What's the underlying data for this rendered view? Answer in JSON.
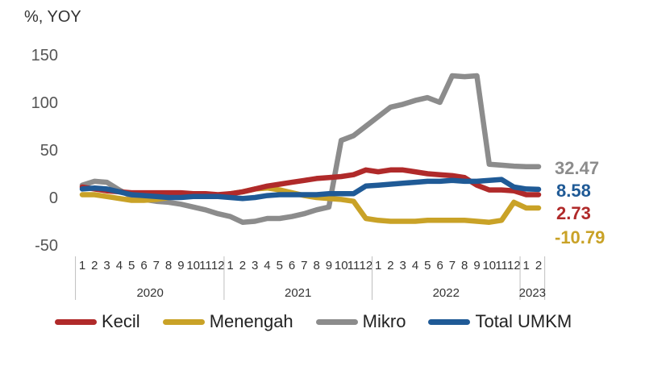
{
  "chart_data": {
    "type": "line",
    "ylabel": "%, YOY",
    "ylim": [
      -50,
      150
    ],
    "yticks": [
      150,
      100,
      50,
      0,
      -50
    ],
    "xtick_labels": [
      "1",
      "2",
      "3",
      "4",
      "5",
      "6",
      "7",
      "8",
      "9",
      "10",
      "11",
      "12",
      "1",
      "2",
      "3",
      "4",
      "5",
      "6",
      "7",
      "8",
      "9",
      "10",
      "11",
      "12",
      "1",
      "2",
      "3",
      "4",
      "5",
      "6",
      "7",
      "8",
      "9",
      "10",
      "11",
      "12",
      "1",
      "2"
    ],
    "years": [
      {
        "label": "2020",
        "start": 0,
        "end": 11
      },
      {
        "label": "2021",
        "start": 12,
        "end": 23
      },
      {
        "label": "2022",
        "start": 24,
        "end": 35
      },
      {
        "label": "2023",
        "start": 36,
        "end": 37
      }
    ],
    "series": [
      {
        "name": "Kecil",
        "color": "#b02a2a",
        "end_label": "2.73",
        "values": [
          11,
          9,
          7,
          6,
          5,
          5,
          5,
          5,
          5,
          4,
          4,
          3,
          4,
          6,
          9,
          12,
          14,
          16,
          18,
          20,
          21,
          22,
          24,
          29,
          27,
          29,
          29,
          27,
          25,
          24,
          23,
          21,
          13,
          8,
          8,
          7,
          3,
          3
        ]
      },
      {
        "name": "Menengah",
        "color": "#c9a227",
        "end_label": "-10.79",
        "values": [
          3,
          3,
          1,
          -1,
          -3,
          -3,
          -2,
          0,
          1,
          2,
          2,
          2,
          4,
          6,
          9,
          10,
          8,
          5,
          2,
          0,
          -1,
          -2,
          -4,
          -22,
          -24,
          -25,
          -25,
          -25,
          -24,
          -24,
          -24,
          -24,
          -25,
          -26,
          -24,
          -5,
          -11,
          -11
        ]
      },
      {
        "name": "Mikro",
        "color": "#8c8c8c",
        "end_label": "32.47",
        "values": [
          13,
          17,
          16,
          8,
          1,
          -2,
          -4,
          -5,
          -7,
          -10,
          -13,
          -17,
          -20,
          -26,
          -25,
          -22,
          -22,
          -20,
          -17,
          -13,
          -10,
          60,
          65,
          75,
          85,
          95,
          98,
          102,
          105,
          100,
          128,
          127,
          128,
          35,
          34,
          33,
          32.47,
          32.47
        ]
      },
      {
        "name": "Total UMKM",
        "color": "#1f5a96",
        "end_label": "8.58",
        "values": [
          9,
          10,
          9,
          6,
          3,
          2,
          1,
          0,
          0,
          1,
          1,
          1,
          0,
          -1,
          0,
          2,
          3,
          3,
          3,
          3,
          4,
          4,
          4,
          12,
          13,
          14,
          15,
          16,
          17,
          17,
          18,
          17,
          17,
          18,
          19,
          11,
          9,
          8.58
        ]
      }
    ]
  }
}
